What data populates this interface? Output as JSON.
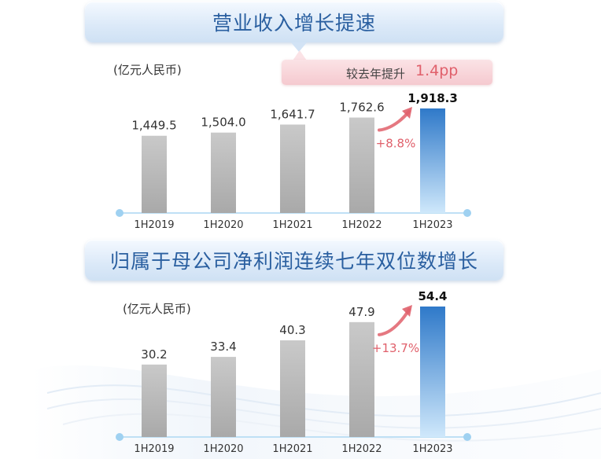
{
  "chart_data": [
    {
      "type": "bar",
      "title": "营业收入增长提速",
      "unit": "(亿元人民币)",
      "categories": [
        "1H2019",
        "1H2020",
        "1H2021",
        "1H2022",
        "1H2023"
      ],
      "values": [
        1449.5,
        1504.0,
        1641.7,
        1762.6,
        1918.3
      ],
      "value_labels": [
        "1,449.5",
        "1,504.0",
        "1,641.7",
        "1,762.6",
        "1,918.3"
      ],
      "growth_label": "+8.8%",
      "callout": {
        "text": "较去年提升",
        "value": "1.4pp"
      },
      "highlight_color": "#2f79c9",
      "bar_color": "#a9a9a9",
      "growth_color": "#e0606b"
    },
    {
      "type": "bar",
      "title": "归属于母公司净利润连续七年双位数增长",
      "unit": "(亿元人民币)",
      "categories": [
        "1H2019",
        "1H2020",
        "1H2021",
        "1H2022",
        "1H2023"
      ],
      "values": [
        30.2,
        33.4,
        40.3,
        47.9,
        54.4
      ],
      "value_labels": [
        "30.2",
        "33.4",
        "40.3",
        "47.9",
        "54.4"
      ],
      "growth_label": "+13.7%",
      "highlight_color": "#2f79c9",
      "bar_color": "#a9a9a9",
      "growth_color": "#e0606b"
    }
  ]
}
